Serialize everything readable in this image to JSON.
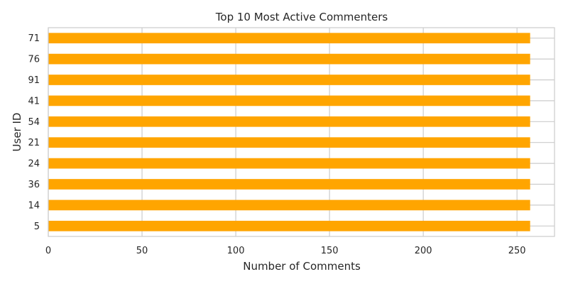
{
  "chart_data": {
    "type": "bar",
    "orientation": "horizontal",
    "title": "Top 10 Most Active Commenters",
    "xlabel": "Number of Comments",
    "ylabel": "User ID",
    "categories": [
      "71",
      "76",
      "91",
      "41",
      "54",
      "21",
      "24",
      "36",
      "14",
      "5"
    ],
    "values": [
      257,
      257,
      257,
      257,
      257,
      257,
      257,
      257,
      257,
      257
    ],
    "xlim": [
      0,
      270
    ],
    "xticks": [
      0,
      50,
      100,
      150,
      200,
      250
    ],
    "grid": true,
    "bar_color": "#ffa500",
    "background": "#ffffff",
    "grid_color": "#cccccc"
  }
}
